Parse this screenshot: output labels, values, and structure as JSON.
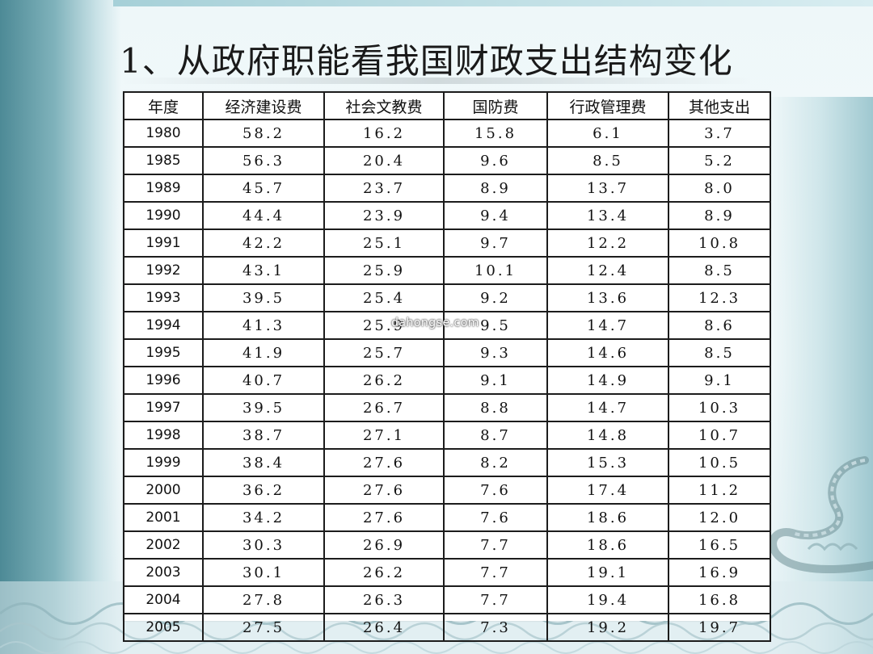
{
  "title": "1、从政府职能看我国财政支出结构变化",
  "table": {
    "headers": [
      "年度",
      "经济建设费",
      "社会文教费",
      "国防费",
      "行政管理费",
      "其他支出"
    ],
    "rows": [
      [
        "1980",
        "58.2",
        "16.2",
        "15.8",
        "6.1",
        "3.7"
      ],
      [
        "1985",
        "56.3",
        "20.4",
        "9.6",
        "8.5",
        "5.2"
      ],
      [
        "1989",
        "45.7",
        "23.7",
        "8.9",
        "13.7",
        "8.0"
      ],
      [
        "1990",
        "44.4",
        "23.9",
        "9.4",
        "13.4",
        "8.9"
      ],
      [
        "1991",
        "42.2",
        "25.1",
        "9.7",
        "12.2",
        "10.8"
      ],
      [
        "1992",
        "43.1",
        "25.9",
        "10.1",
        "12.4",
        "8.5"
      ],
      [
        "1993",
        "39.5",
        "25.4",
        "9.2",
        "13.6",
        "12.3"
      ],
      [
        "1994",
        "41.3",
        "25.9",
        "9.5",
        "14.7",
        "8.6"
      ],
      [
        "1995",
        "41.9",
        "25.7",
        "9.3",
        "14.6",
        "8.5"
      ],
      [
        "1996",
        "40.7",
        "26.2",
        "9.1",
        "14.9",
        "9.1"
      ],
      [
        "1997",
        "39.5",
        "26.7",
        "8.8",
        "14.7",
        "10.3"
      ],
      [
        "1998",
        "38.7",
        "27.1",
        "8.7",
        "14.8",
        "10.7"
      ],
      [
        "1999",
        "38.4",
        "27.6",
        "8.2",
        "15.3",
        "10.5"
      ],
      [
        "2000",
        "36.2",
        "27.6",
        "7.6",
        "17.4",
        "11.2"
      ],
      [
        "2001",
        "34.2",
        "27.6",
        "7.6",
        "18.6",
        "12.0"
      ],
      [
        "2002",
        "30.3",
        "26.9",
        "7.7",
        "18.6",
        "16.5"
      ],
      [
        "2003",
        "30.1",
        "26.2",
        "7.7",
        "19.1",
        "16.9"
      ],
      [
        "2004",
        "27.8",
        "26.3",
        "7.7",
        "19.4",
        "16.8"
      ],
      [
        "2005",
        "27.5",
        "26.4",
        "7.3",
        "19.2",
        "19.7"
      ]
    ]
  },
  "watermark": "dahongse.com",
  "colors": {
    "accent_teal": "#4d8a96",
    "background": "#eef7f9",
    "table_border": "#1c1c1c"
  }
}
